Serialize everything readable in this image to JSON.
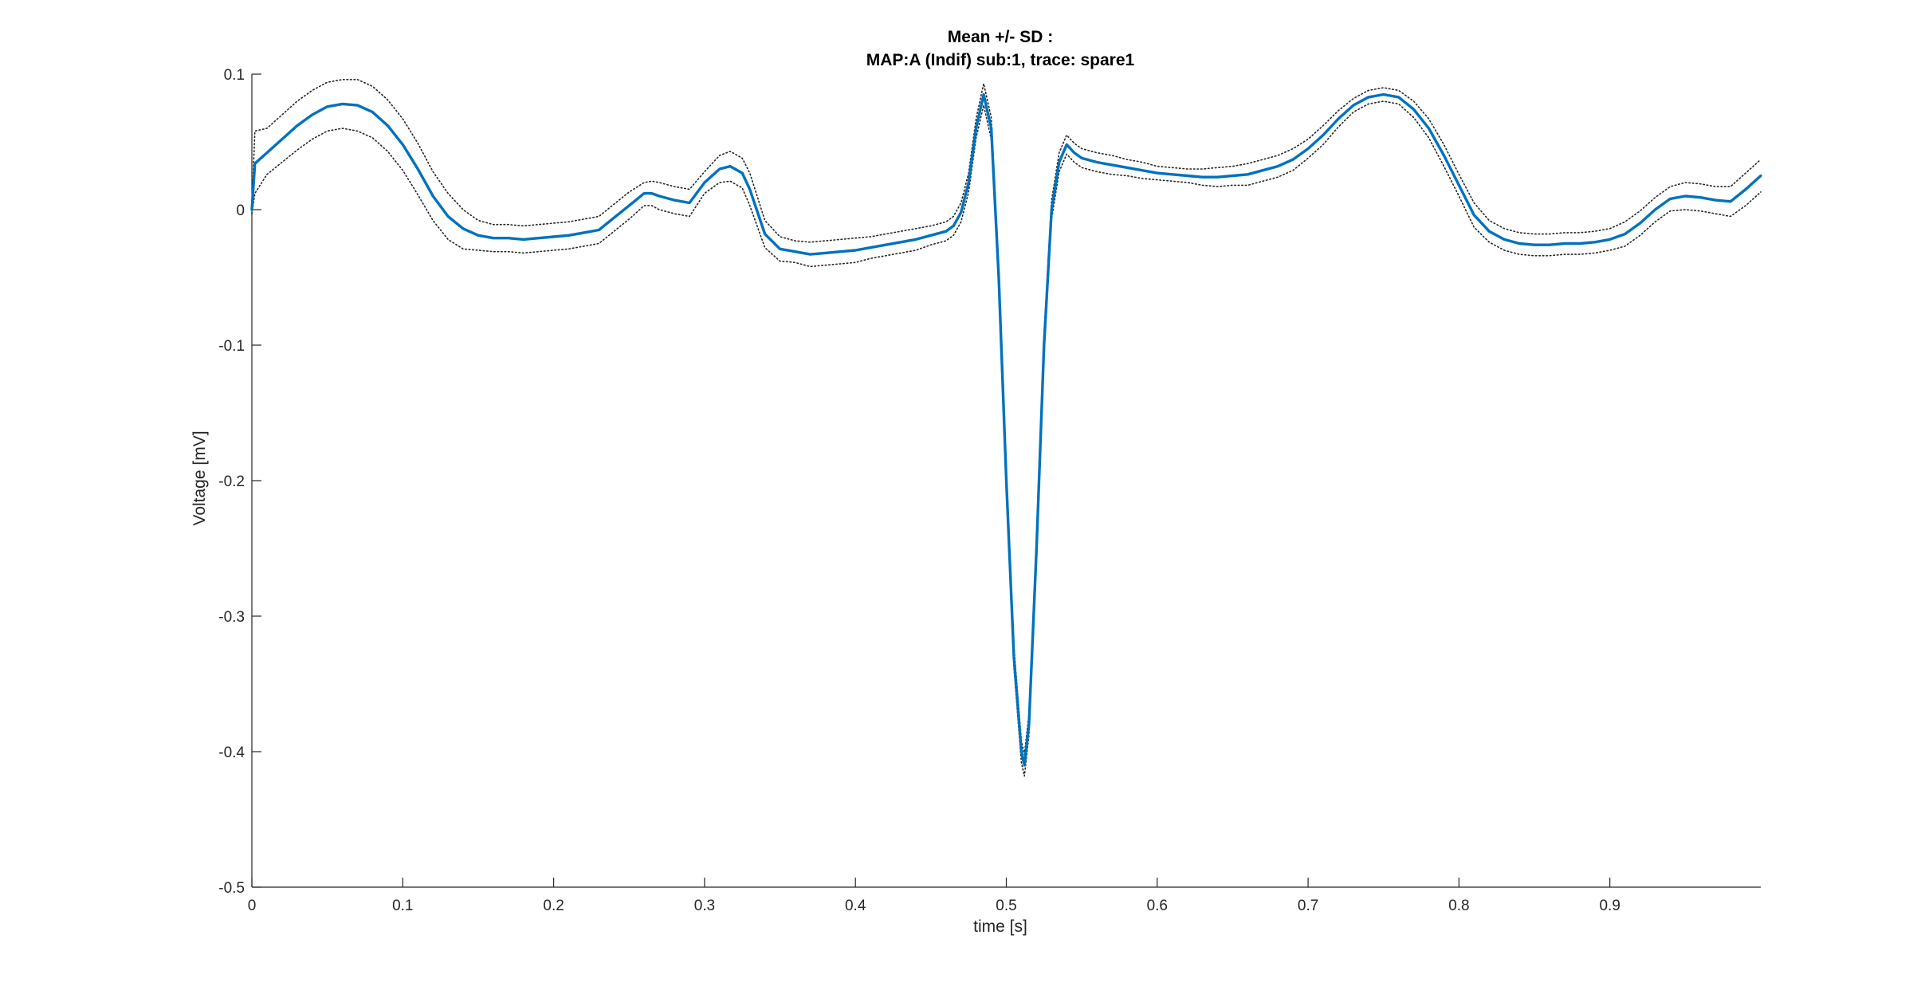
{
  "chart_data": {
    "type": "line",
    "title": [
      "Mean +/- SD :",
      "MAP:A (Indif) sub:1, trace: spare1"
    ],
    "xlabel": "time [s]",
    "ylabel": "Voltage [mV]",
    "xlim": [
      0,
      1
    ],
    "ylim": [
      -0.5,
      0.1
    ],
    "xticks": [
      0,
      0.1,
      0.2,
      0.3,
      0.4,
      0.5,
      0.6,
      0.7,
      0.8,
      0.9
    ],
    "xtick_labels": [
      "0",
      "0.1",
      "0.2",
      "0.3",
      "0.4",
      "0.5",
      "0.6",
      "0.7",
      "0.8",
      "0.9"
    ],
    "yticks": [
      0.1,
      0,
      -0.1,
      -0.2,
      -0.3,
      -0.4,
      -0.5
    ],
    "ytick_labels": [
      "0.1",
      "0",
      "-0.1",
      "-0.2",
      "-0.3",
      "-0.4",
      "-0.5"
    ],
    "grid": false,
    "series": [
      {
        "role": "mean",
        "color": "#0072BD",
        "style": "solid",
        "x": [
          0,
          0.002,
          0.01,
          0.02,
          0.03,
          0.04,
          0.05,
          0.06,
          0.07,
          0.08,
          0.09,
          0.1,
          0.11,
          0.12,
          0.13,
          0.14,
          0.15,
          0.16,
          0.17,
          0.18,
          0.19,
          0.2,
          0.21,
          0.22,
          0.23,
          0.24,
          0.25,
          0.26,
          0.265,
          0.27,
          0.28,
          0.29,
          0.3,
          0.31,
          0.317,
          0.325,
          0.33,
          0.34,
          0.35,
          0.36,
          0.37,
          0.38,
          0.39,
          0.4,
          0.41,
          0.42,
          0.43,
          0.44,
          0.45,
          0.46,
          0.465,
          0.47,
          0.475,
          0.48,
          0.485,
          0.49,
          0.495,
          0.5,
          0.505,
          0.51,
          0.512,
          0.515,
          0.52,
          0.525,
          0.53,
          0.535,
          0.54,
          0.545,
          0.55,
          0.56,
          0.57,
          0.58,
          0.59,
          0.6,
          0.61,
          0.62,
          0.63,
          0.64,
          0.65,
          0.66,
          0.67,
          0.68,
          0.69,
          0.7,
          0.71,
          0.72,
          0.73,
          0.74,
          0.75,
          0.76,
          0.77,
          0.78,
          0.79,
          0.8,
          0.81,
          0.82,
          0.83,
          0.84,
          0.85,
          0.86,
          0.87,
          0.88,
          0.89,
          0.9,
          0.91,
          0.92,
          0.93,
          0.94,
          0.95,
          0.96,
          0.97,
          0.98,
          0.99,
          1.0
        ],
        "y": [
          0.0,
          0.034,
          0.042,
          0.052,
          0.062,
          0.07,
          0.076,
          0.078,
          0.077,
          0.072,
          0.062,
          0.048,
          0.03,
          0.01,
          -0.005,
          -0.014,
          -0.019,
          -0.021,
          -0.021,
          -0.022,
          -0.021,
          -0.02,
          -0.019,
          -0.017,
          -0.015,
          -0.006,
          0.003,
          0.012,
          0.012,
          0.01,
          0.007,
          0.005,
          0.02,
          0.03,
          0.032,
          0.027,
          0.015,
          -0.018,
          -0.029,
          -0.031,
          -0.033,
          -0.032,
          -0.031,
          -0.03,
          -0.028,
          -0.026,
          -0.024,
          -0.022,
          -0.019,
          -0.016,
          -0.012,
          -0.002,
          0.02,
          0.06,
          0.085,
          0.06,
          -0.05,
          -0.2,
          -0.33,
          -0.4,
          -0.41,
          -0.38,
          -0.25,
          -0.1,
          0.0,
          0.035,
          0.048,
          0.042,
          0.038,
          0.035,
          0.033,
          0.031,
          0.029,
          0.027,
          0.026,
          0.025,
          0.024,
          0.024,
          0.025,
          0.026,
          0.029,
          0.032,
          0.037,
          0.045,
          0.055,
          0.067,
          0.077,
          0.083,
          0.085,
          0.083,
          0.074,
          0.06,
          0.04,
          0.018,
          -0.004,
          -0.016,
          -0.022,
          -0.025,
          -0.026,
          -0.026,
          -0.025,
          -0.025,
          -0.024,
          -0.022,
          -0.018,
          -0.01,
          0.0,
          0.008,
          0.01,
          0.009,
          0.007,
          0.006,
          0.015,
          0.025
        ]
      },
      {
        "role": "mean + SD",
        "color": "#262626",
        "style": "dotted",
        "x": [
          0,
          0.002,
          0.01,
          0.02,
          0.03,
          0.04,
          0.05,
          0.06,
          0.07,
          0.08,
          0.09,
          0.1,
          0.11,
          0.12,
          0.13,
          0.14,
          0.15,
          0.16,
          0.17,
          0.18,
          0.19,
          0.2,
          0.21,
          0.22,
          0.23,
          0.24,
          0.25,
          0.26,
          0.265,
          0.27,
          0.28,
          0.29,
          0.3,
          0.31,
          0.317,
          0.325,
          0.33,
          0.34,
          0.35,
          0.36,
          0.37,
          0.38,
          0.39,
          0.4,
          0.41,
          0.42,
          0.43,
          0.44,
          0.45,
          0.46,
          0.465,
          0.47,
          0.475,
          0.48,
          0.485,
          0.49,
          0.495,
          0.5,
          0.505,
          0.51,
          0.512,
          0.515,
          0.52,
          0.525,
          0.53,
          0.535,
          0.54,
          0.545,
          0.55,
          0.56,
          0.57,
          0.58,
          0.59,
          0.6,
          0.61,
          0.62,
          0.63,
          0.64,
          0.65,
          0.66,
          0.67,
          0.68,
          0.69,
          0.7,
          0.71,
          0.72,
          0.73,
          0.74,
          0.75,
          0.76,
          0.77,
          0.78,
          0.79,
          0.8,
          0.81,
          0.82,
          0.83,
          0.84,
          0.85,
          0.86,
          0.87,
          0.88,
          0.89,
          0.9,
          0.91,
          0.92,
          0.93,
          0.94,
          0.95,
          0.96,
          0.97,
          0.98,
          0.99,
          1.0
        ],
        "y": [
          0.003,
          0.058,
          0.06,
          0.07,
          0.08,
          0.088,
          0.094,
          0.096,
          0.096,
          0.091,
          0.081,
          0.067,
          0.049,
          0.028,
          0.012,
          0.0,
          -0.008,
          -0.011,
          -0.011,
          -0.012,
          -0.011,
          -0.01,
          -0.009,
          -0.007,
          -0.005,
          0.004,
          0.013,
          0.02,
          0.021,
          0.02,
          0.017,
          0.015,
          0.028,
          0.04,
          0.043,
          0.038,
          0.027,
          -0.008,
          -0.02,
          -0.023,
          -0.024,
          -0.023,
          -0.022,
          -0.021,
          -0.02,
          -0.018,
          -0.016,
          -0.014,
          -0.012,
          -0.009,
          -0.005,
          0.005,
          0.027,
          0.067,
          0.093,
          0.068,
          -0.042,
          -0.192,
          -0.322,
          -0.392,
          -0.402,
          -0.372,
          -0.242,
          -0.092,
          0.007,
          0.042,
          0.055,
          0.049,
          0.045,
          0.042,
          0.04,
          0.037,
          0.035,
          0.032,
          0.031,
          0.03,
          0.03,
          0.031,
          0.032,
          0.034,
          0.037,
          0.04,
          0.045,
          0.052,
          0.062,
          0.073,
          0.082,
          0.088,
          0.09,
          0.088,
          0.08,
          0.067,
          0.048,
          0.026,
          0.005,
          -0.008,
          -0.014,
          -0.017,
          -0.018,
          -0.018,
          -0.017,
          -0.017,
          -0.016,
          -0.014,
          -0.009,
          -0.001,
          0.009,
          0.017,
          0.02,
          0.019,
          0.017,
          0.017,
          0.027,
          0.037
        ]
      },
      {
        "role": "mean - SD",
        "color": "#262626",
        "style": "dotted",
        "x": [
          0,
          0.002,
          0.01,
          0.02,
          0.03,
          0.04,
          0.05,
          0.06,
          0.07,
          0.08,
          0.09,
          0.1,
          0.11,
          0.12,
          0.13,
          0.14,
          0.15,
          0.16,
          0.17,
          0.18,
          0.19,
          0.2,
          0.21,
          0.22,
          0.23,
          0.24,
          0.25,
          0.26,
          0.265,
          0.27,
          0.28,
          0.29,
          0.3,
          0.31,
          0.317,
          0.325,
          0.33,
          0.34,
          0.35,
          0.36,
          0.37,
          0.38,
          0.39,
          0.4,
          0.41,
          0.42,
          0.43,
          0.44,
          0.45,
          0.46,
          0.465,
          0.47,
          0.475,
          0.48,
          0.485,
          0.49,
          0.495,
          0.5,
          0.505,
          0.51,
          0.512,
          0.515,
          0.52,
          0.525,
          0.53,
          0.535,
          0.54,
          0.545,
          0.55,
          0.56,
          0.57,
          0.58,
          0.59,
          0.6,
          0.61,
          0.62,
          0.63,
          0.64,
          0.65,
          0.66,
          0.67,
          0.68,
          0.69,
          0.7,
          0.71,
          0.72,
          0.73,
          0.74,
          0.75,
          0.76,
          0.77,
          0.78,
          0.79,
          0.8,
          0.81,
          0.82,
          0.83,
          0.84,
          0.85,
          0.86,
          0.87,
          0.88,
          0.89,
          0.9,
          0.91,
          0.92,
          0.93,
          0.94,
          0.95,
          0.96,
          0.97,
          0.98,
          0.99,
          1.0
        ],
        "y": [
          -0.003,
          0.012,
          0.026,
          0.035,
          0.044,
          0.052,
          0.058,
          0.06,
          0.058,
          0.053,
          0.043,
          0.029,
          0.011,
          -0.008,
          -0.022,
          -0.029,
          -0.03,
          -0.031,
          -0.031,
          -0.032,
          -0.031,
          -0.03,
          -0.029,
          -0.027,
          -0.025,
          -0.016,
          -0.007,
          0.003,
          0.003,
          0.0,
          -0.003,
          -0.005,
          0.012,
          0.02,
          0.021,
          0.016,
          0.003,
          -0.028,
          -0.038,
          -0.039,
          -0.042,
          -0.041,
          -0.04,
          -0.039,
          -0.036,
          -0.034,
          -0.032,
          -0.03,
          -0.026,
          -0.023,
          -0.019,
          -0.009,
          0.013,
          0.053,
          0.077,
          0.052,
          -0.058,
          -0.208,
          -0.338,
          -0.408,
          -0.418,
          -0.388,
          -0.258,
          -0.108,
          -0.007,
          0.028,
          0.041,
          0.035,
          0.031,
          0.028,
          0.026,
          0.025,
          0.023,
          0.022,
          0.021,
          0.02,
          0.018,
          0.017,
          0.018,
          0.018,
          0.021,
          0.024,
          0.029,
          0.038,
          0.048,
          0.061,
          0.072,
          0.078,
          0.08,
          0.078,
          0.068,
          0.053,
          0.032,
          0.01,
          -0.013,
          -0.024,
          -0.03,
          -0.033,
          -0.034,
          -0.034,
          -0.033,
          -0.033,
          -0.032,
          -0.03,
          -0.027,
          -0.019,
          -0.009,
          -0.001,
          0.0,
          -0.001,
          -0.003,
          -0.005,
          0.003,
          0.013
        ]
      }
    ]
  }
}
